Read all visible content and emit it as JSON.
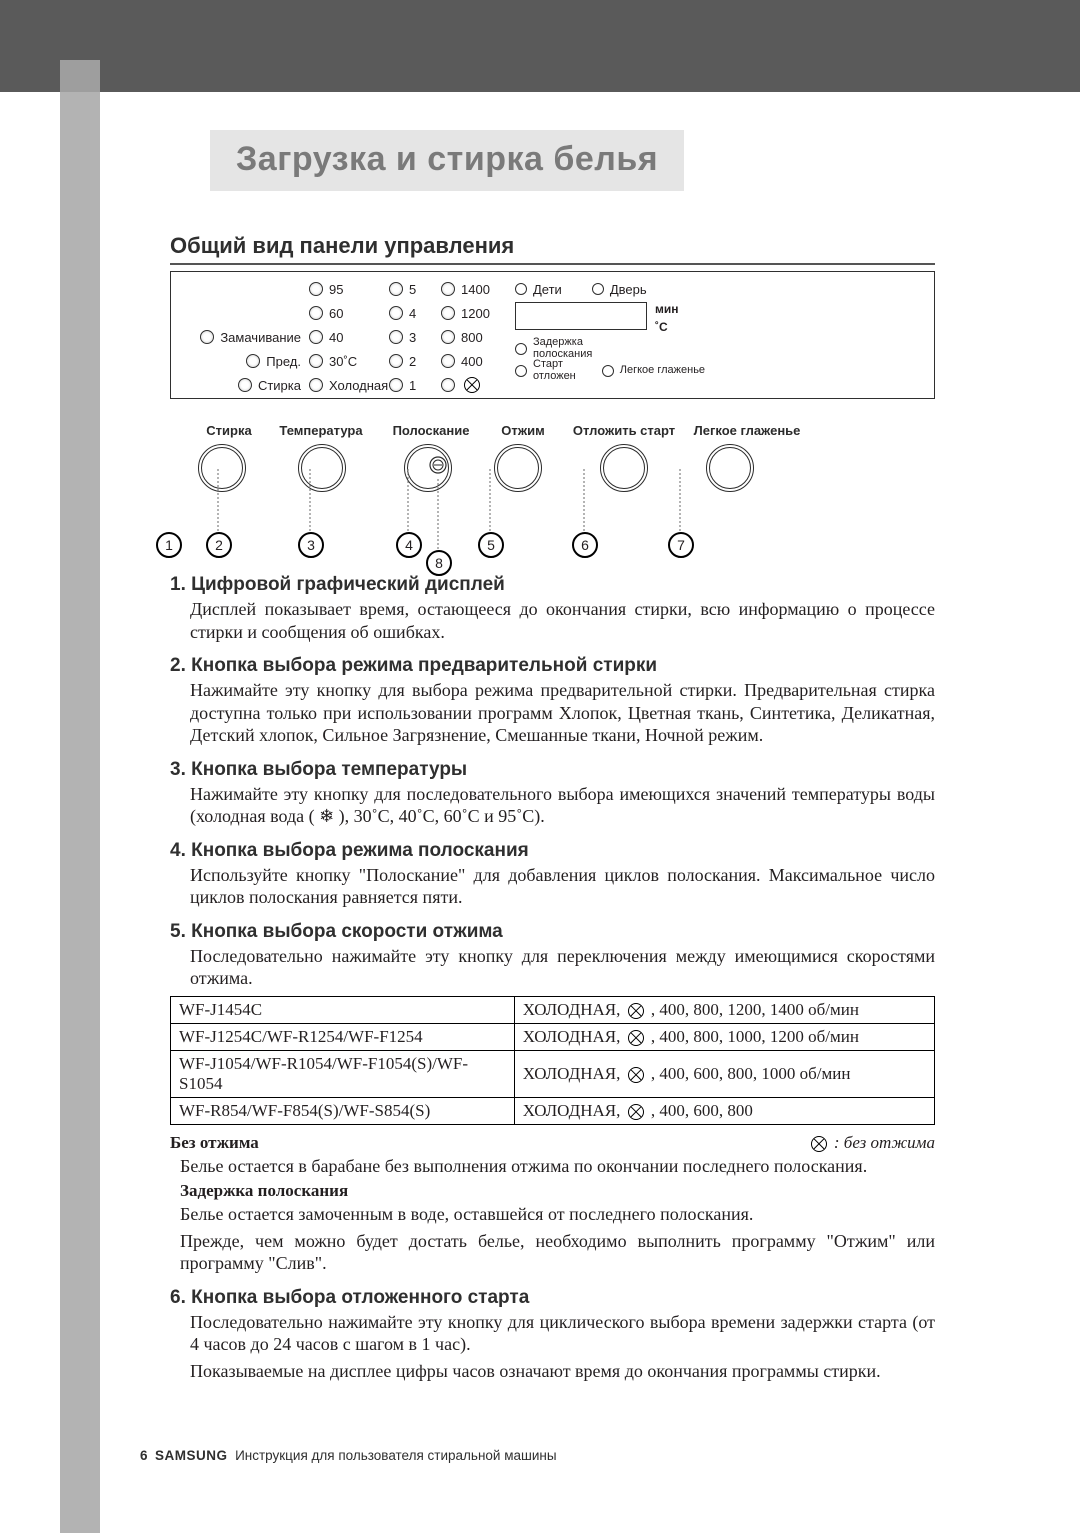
{
  "title": "Загрузка и стирка белья",
  "subtitle": "Общий вид панели управления",
  "panel": {
    "col_labels_left": [
      "",
      "",
      "Замачивание",
      "Пред.",
      "Стирка"
    ],
    "temp_col": [
      "95",
      "60",
      "40",
      "30˚C",
      "Холодная"
    ],
    "rinse_col": [
      "5",
      "4",
      "3",
      "2",
      "1"
    ],
    "spin_col": [
      "1400",
      "1200",
      "800",
      "400",
      "⊘"
    ],
    "top_right_1": "Дети",
    "top_right_2": "Дверь",
    "right_small_1": "Задержка\nполоскания",
    "right_small_2": "Старт\nотложен",
    "right_small_3": "Легкое глаженье",
    "disp_min": "мин",
    "disp_c": "˚C"
  },
  "knob_labels": [
    "Стирка",
    "Температура",
    "Полоскание",
    "Отжим",
    "Отложить старт",
    "Легкое глаженье"
  ],
  "callouts": [
    "1",
    "2",
    "3",
    "4",
    "5",
    "6",
    "7",
    "8"
  ],
  "sections": [
    {
      "num": "1.",
      "title": "Цифровой графический дисплей",
      "paras": [
        "Дисплей показывает время, остающееся до окончания стирки, всю информацию о процессе стирки и сообщения об ошибках."
      ]
    },
    {
      "num": "2.",
      "title": "Кнопка выбора режима предварительной стирки",
      "paras": [
        "Нажимайте эту кнопку для выбора режима предварительной стирки. Предварительная стирка доступна только при использовании программ Хлопок, Цветная ткань, Синтетика, Деликатная, Детский хлопок, Сильное Загрязнение, Смешанные ткани, Ночной режим."
      ]
    },
    {
      "num": "3.",
      "title": "Кнопка выбора температуры",
      "paras": [
        "Нажимайте эту кнопку для последовательного выбора имеющихся значений температуры воды (холодная вода ( ❄ ), 30˚C, 40˚C, 60˚C и 95˚C)."
      ]
    },
    {
      "num": "4.",
      "title": "Кнопка выбора режима полоскания",
      "paras": [
        "Используйте кнопку \"Полоскание\" для добавления циклов полоскания. Максимальное число циклов полоскания равняется пяти."
      ]
    },
    {
      "num": "5.",
      "title": "Кнопка выбора скорости отжима",
      "paras": [
        "Последовательно нажимайте эту кнопку для переключения между имеющимися скоростями отжима."
      ]
    }
  ],
  "models_table": {
    "rows": [
      [
        "WF-J1454C",
        "ХОЛОДНАЯ, ⊘ , 400, 800, 1200, 1400 об/мин"
      ],
      [
        "WF-J1254C/WF-R1254/WF-F1254",
        "ХОЛОДНАЯ, ⊘ , 400, 800, 1000, 1200 об/мин"
      ],
      [
        "WF-J1054/WF-R1054/WF-F1054(S)/WF-S1054",
        "ХОЛОДНАЯ, ⊘ , 400, 600,  800, 1000 об/мин"
      ],
      [
        "WF-R854/WF-F854(S)/WF-S854(S)",
        "ХОЛОДНАЯ, ⊘ , 400, 600,  800"
      ]
    ]
  },
  "after_table": {
    "left_bold": "Без отжима",
    "right_ital": ": без отжима",
    "p1": "Белье остается в барабане без выполнения отжима по окончании последнего полоскания.",
    "hold_bold": "Задержка полоскания",
    "p2": "Белье остается замоченным в воде, оставшейся от последнего полоскания.",
    "p3": "Прежде, чем можно будет достать белье, необходимо выполнить программу \"Отжим\" или программу \"Слив\"."
  },
  "section6": {
    "num": "6.",
    "title": "Кнопка выбора отложенного старта",
    "paras": [
      "Последовательно нажимайте эту кнопку для циклического выбора времени задержки старта (от 4 часов до 24 часов с шагом в 1 час).",
      "Показываемые на дисплее цифры часов означают время до окончания программы стирки."
    ]
  },
  "footer": {
    "page": "6",
    "brand": "SAMSUNG",
    "text": "Инструкция для пользователя стиральной машины"
  },
  "colors": {
    "topbar": "#5a5a5a",
    "sidebar": "#b3b3b3",
    "title_bg": "#e5e5e5",
    "title_fg": "#7a7a7a"
  }
}
